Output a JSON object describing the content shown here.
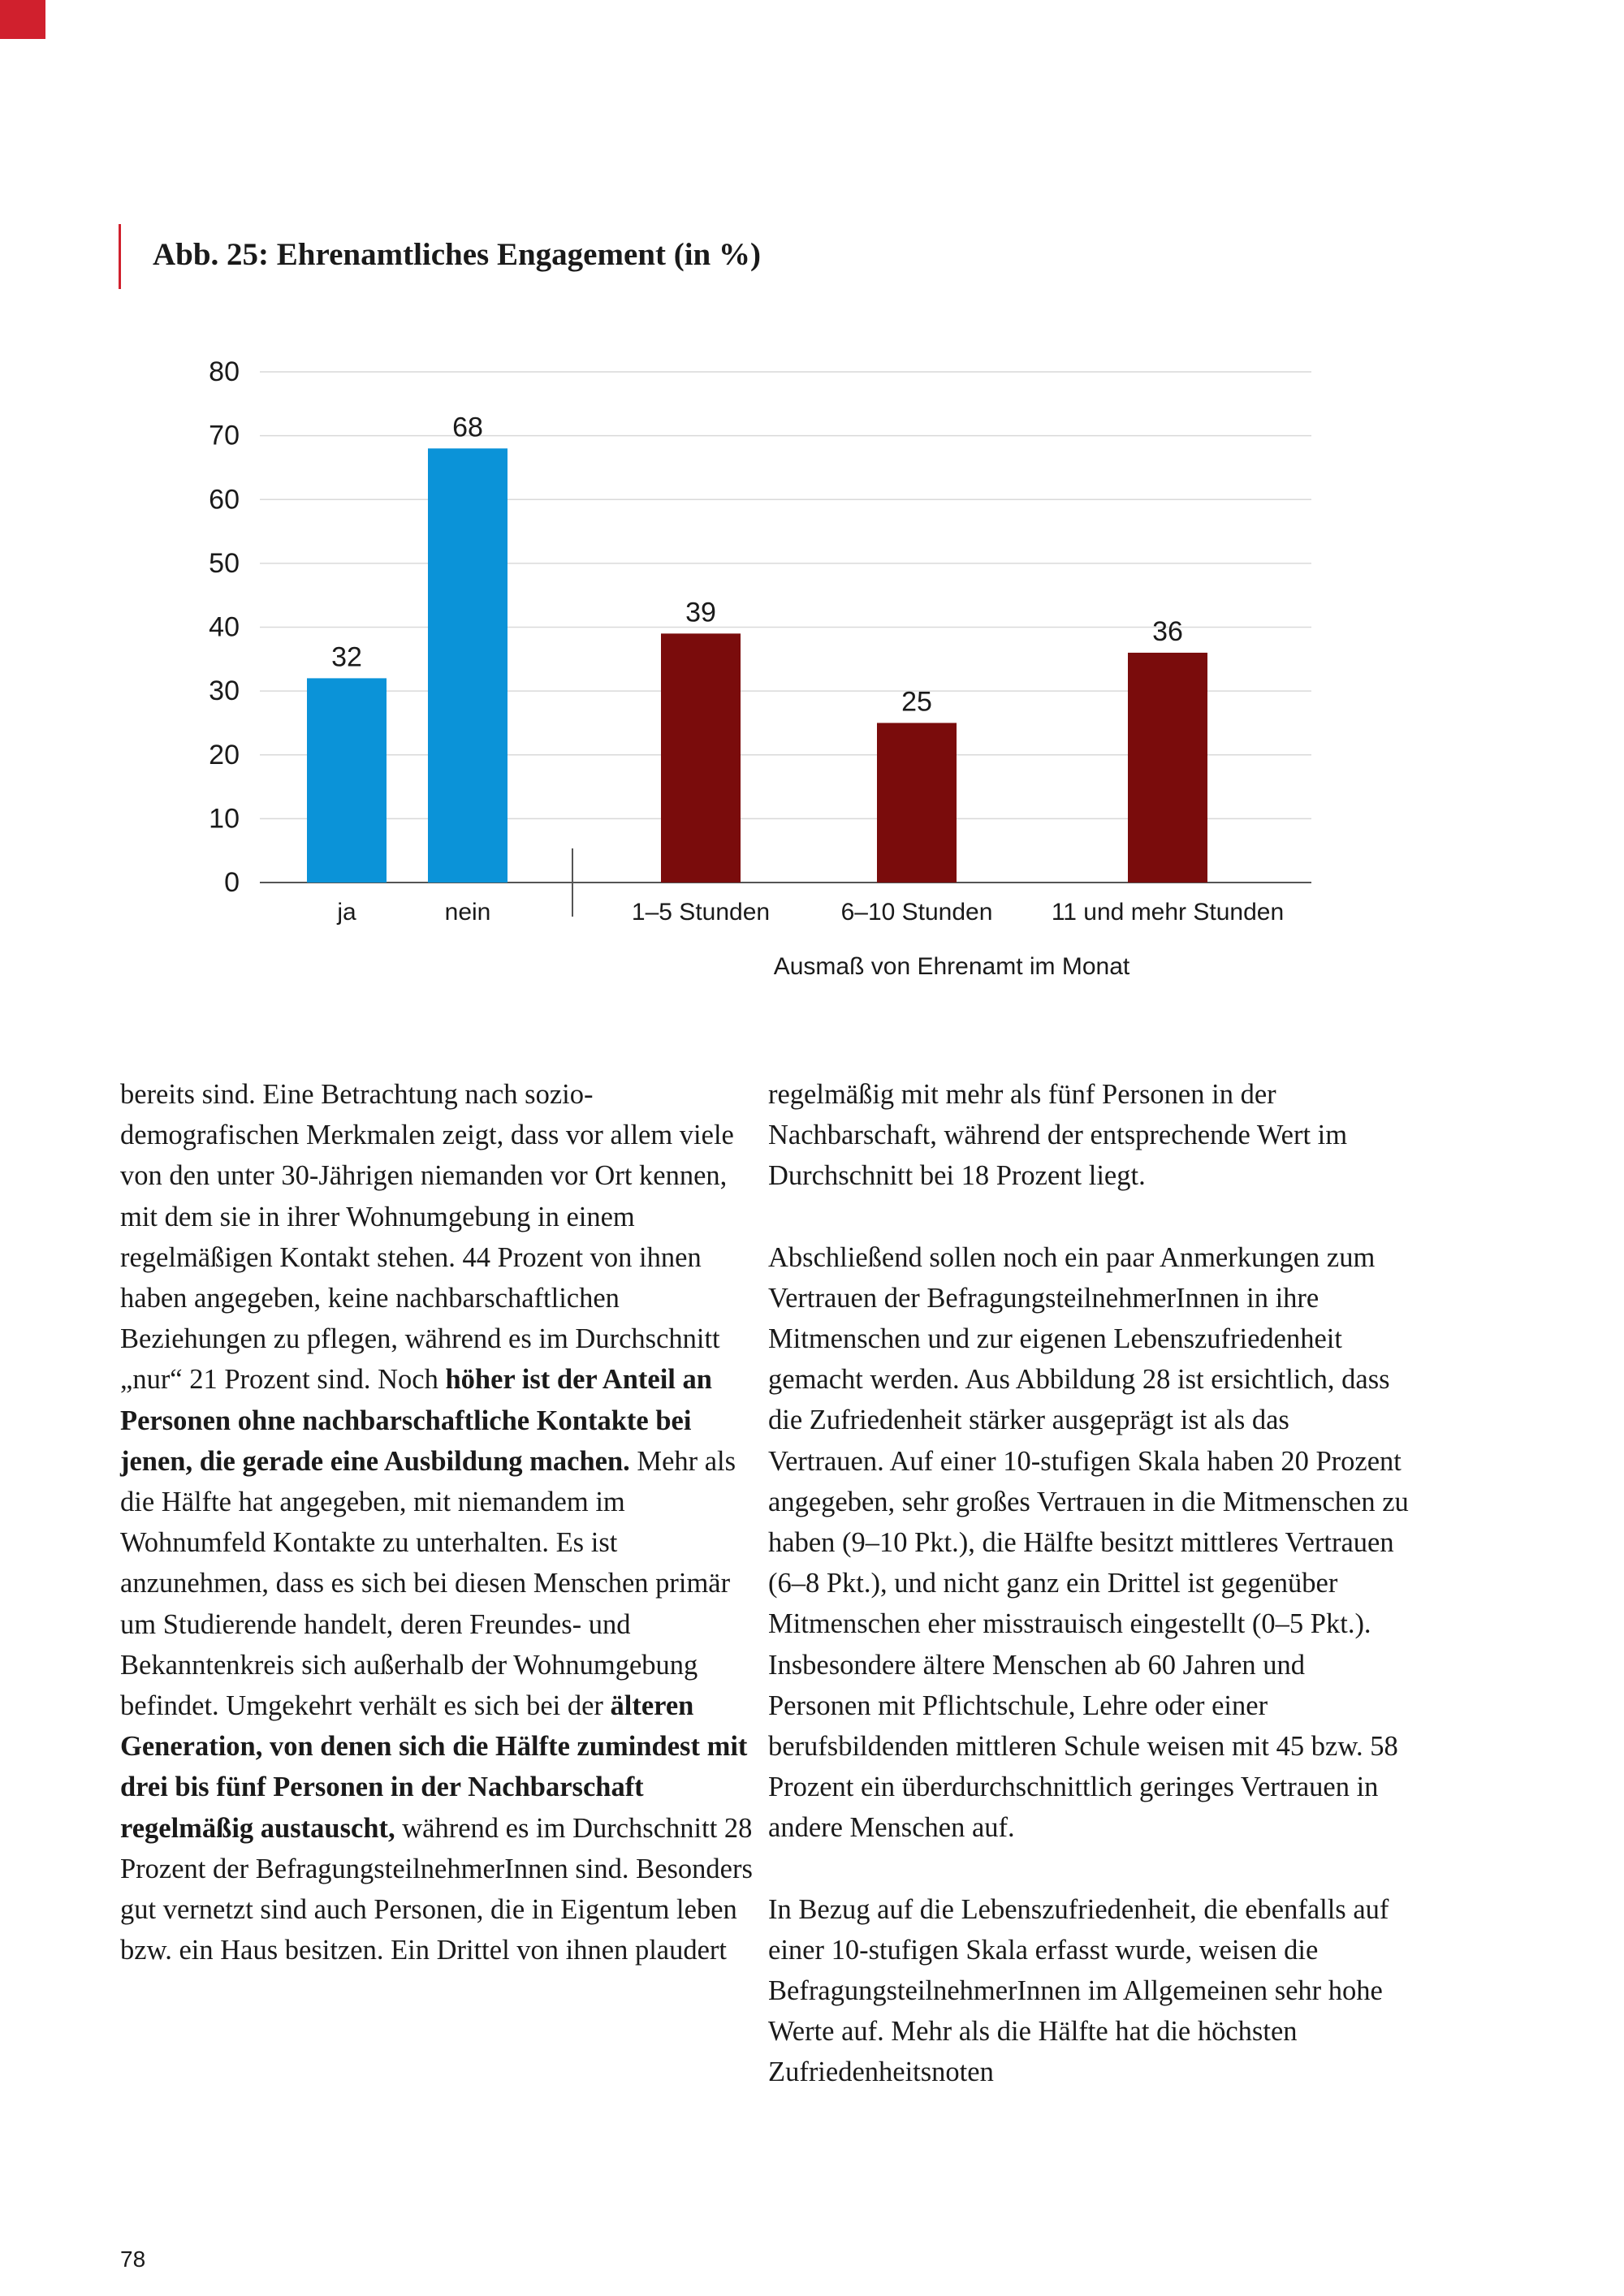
{
  "colors": {
    "accent": "#d0202d",
    "bar_blue": "#0b93d8",
    "bar_red": "#7a0c0c",
    "grid": "#d9d9d9",
    "axis": "#555555"
  },
  "figure": {
    "caption": "Abb. 25: Ehrenamtliches Engagement (in %)"
  },
  "chart_data": {
    "type": "bar",
    "title": "Abb. 25: Ehrenamtliches Engagement (in %)",
    "categories": [
      "ja",
      "nein",
      "1–5 Stunden",
      "6–10 Stunden",
      "11 und mehr Stunden"
    ],
    "values": [
      32,
      68,
      39,
      25,
      36
    ],
    "bar_colors": [
      "#0b93d8",
      "#0b93d8",
      "#7a0c0c",
      "#7a0c0c",
      "#7a0c0c"
    ],
    "data_labels": [
      "32",
      "68",
      "39",
      "25",
      "36"
    ],
    "y_ticks": [
      0,
      10,
      20,
      30,
      40,
      50,
      60,
      70,
      80
    ],
    "y_tick_labels": [
      "0",
      "10",
      "20",
      "30",
      "40",
      "50",
      "60",
      "70",
      "80"
    ],
    "ylim": [
      0,
      80
    ],
    "xlabel": "Ausmaß von Ehrenamt im Monat",
    "ylabel": "",
    "grid": true,
    "legend": "none"
  },
  "body": {
    "left": [
      [
        {
          "t": "bereits sind. Eine Betrachtung nach sozio­demografischen Merkmalen zeigt, dass vor allem viele von den unter 30-Jährigen niemanden vor Ort kennen, mit dem sie in ihrer Wohnumgebung in einem regelmäßigen Kontakt stehen. 44 Prozent von ihnen haben angegeben, keine nachbarschaftlichen Beziehungen zu pflegen, während es im Durchschnitt „nur“ 21 Prozent sind. Noch "
        },
        {
          "t": "höher ist der Anteil an Personen ohne nachbarschaftliche Kontakte bei jenen, die gerade eine Ausbildung machen.",
          "b": true
        },
        {
          "t": " Mehr als die Hälfte hat angegeben, mit niemandem im Wohnumfeld Kontakte zu unterhalten. Es ist anzunehmen, dass es sich bei diesen Menschen primär um Studierende handelt, deren Freundes- und Bekanntenkreis sich außerhalb der Wohnumgebung befindet. Umgekehrt verhält es sich bei der "
        },
        {
          "t": "älteren Generation, von denen sich die Hälfte zumindest mit drei bis fünf Personen in der Nachbarschaft regelmäßig austauscht,",
          "b": true
        },
        {
          "t": " während es im Durchschnitt 28 Prozent der BefragungsteilnehmerInnen sind. Besonders gut vernetzt sind auch Personen, die in Eigentum leben bzw. ein Haus besitzen. Ein Drittel von ihnen plaudert"
        }
      ]
    ],
    "right": [
      [
        {
          "t": "regelmäßig mit mehr als fünf Personen in der Nachbarschaft, während der entsprechende Wert im Durchschnitt bei 18 Prozent liegt."
        }
      ],
      [
        {
          "t": "Abschließend sollen noch ein paar Anmer­kungen zum Vertrauen der Befragungs­teilnehmerInnen in ihre Mitmenschen und zur eigenen Lebenszufriedenheit gemacht werden. Aus Abbildung 28 ist ersichtlich, dass die Zufriedenheit stärker ausgeprägt ist als das Vertrauen. Auf einer 10-stufigen Skala haben 20 Prozent angegeben, sehr großes Vertrauen in die Mitmenschen zu haben (9–10 Pkt.), die Hälfte besitzt mittleres Vertrauen (6–8 Pkt.), und nicht ganz ein Drittel ist gegenüber Mitmenschen eher misstrauisch eingestellt (0–5 Pkt.). Insbesondere ältere Menschen ab 60 Jahren und Personen mit Pflichtschule, Lehre oder einer berufsbildenden mittleren Schule weisen mit 45 bzw. 58 Prozent ein überdurchschnittlich geringes Vertrauen in andere Menschen auf."
        }
      ],
      [
        {
          "t": "In Bezug auf die Lebenszufriedenheit, die ebenfalls auf einer 10-stufigen Skala erfasst wurde, weisen die BefragungsteilnehmerInnen im Allgemeinen sehr hohe Werte auf. Mehr als die Hälfte hat die höchsten Zufriedenheitsnoten"
        }
      ]
    ]
  },
  "page_number": "78"
}
